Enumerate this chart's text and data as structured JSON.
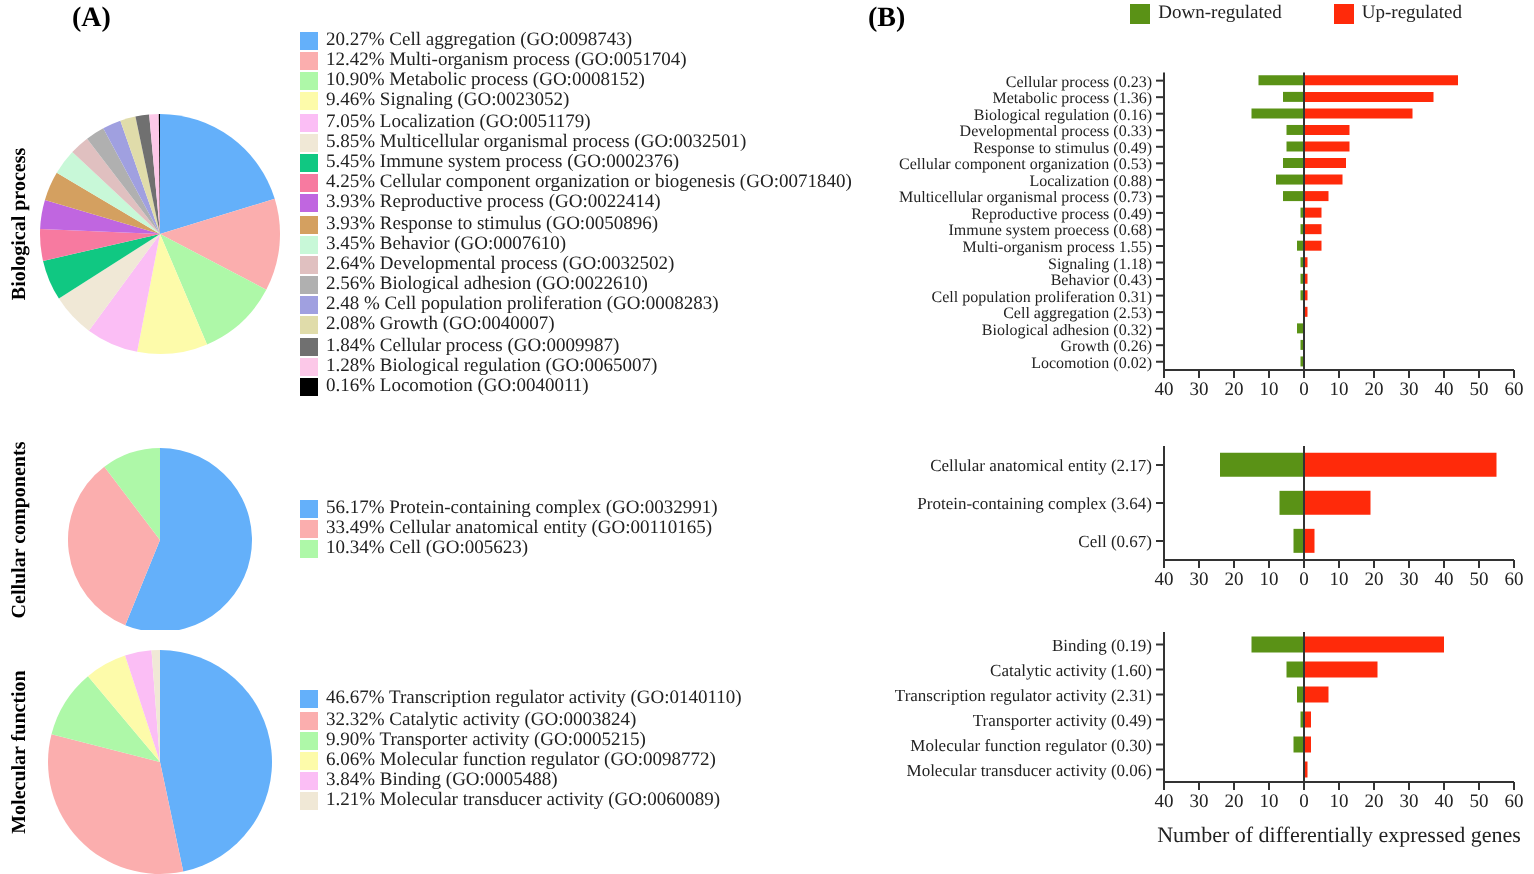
{
  "chart_data": [
    {
      "type": "pie",
      "title": "(A)",
      "ylabel": "Biological process",
      "legend": "right",
      "categories": [
        "Cell aggregation (GO:0098743)",
        "Multi-organism process (GO:0051704)",
        "Metabolic process (GO:0008152)",
        "Signaling (GO:0023052)",
        "Localization (GO:0051179)",
        "Multicellular organismal process (GO:0032501)",
        "Immune system process (GO:0002376)",
        "Cellular component organization or biogenesis (GO:0071840)",
        "Reproductive process (GO:0022414)",
        "Response to stimulus (GO:0050896)",
        "Behavior (GO:0007610)",
        "Developmental process (GO:0032502)",
        "Biological adhesion (GO:0022610)",
        "Cell population proliferation (GO:0008283)",
        "Growth (GO:0040007)",
        "Cellular process (GO:0009987)",
        "Biological regulation (GO:0065007)",
        "Locomotion (GO:0040011)"
      ],
      "values": [
        20.27,
        12.42,
        10.9,
        9.46,
        7.05,
        5.85,
        5.45,
        4.25,
        3.93,
        3.93,
        3.45,
        2.64,
        2.56,
        2.48,
        2.08,
        1.84,
        1.28,
        0.16
      ],
      "value_labels": [
        "20.27%",
        "12.42%",
        "10.90%",
        "9.46%",
        "7.05%",
        "5.85%",
        "5.45%",
        "4.25%",
        "3.93%",
        "3.93%",
        "3.45%",
        "2.64%",
        "2.56%",
        "2.48 %",
        "2.08%",
        "1.84%",
        "1.28%",
        "0.16%"
      ],
      "colors": [
        "#64b0fa",
        "#fbaeae",
        "#aef8a8",
        "#fdfbaa",
        "#fbbef5",
        "#f0e8d6",
        "#10c882",
        "#f77aa0",
        "#c066e0",
        "#d4a060",
        "#c8f8d8",
        "#e0c0c0",
        "#b0b0b0",
        "#a0a0e0",
        "#e0dcaa",
        "#707070",
        "#fcc8e8",
        "#000000"
      ]
    },
    {
      "type": "pie",
      "ylabel": "Cellular components",
      "legend": "right",
      "categories": [
        "Protein-containing complex (GO:0032991)",
        "Cellular anatomical entity (GO:00110165)",
        "Cell (GO:005623)"
      ],
      "values": [
        56.17,
        33.49,
        10.34
      ],
      "value_labels": [
        "56.17%",
        "33.49%",
        "10.34%"
      ],
      "colors": [
        "#64b0fa",
        "#fbaeae",
        "#aef8a8"
      ]
    },
    {
      "type": "pie",
      "ylabel": "Molecular function",
      "legend": "right",
      "categories": [
        "Transcription regulator activity (GO:0140110)",
        "Catalytic activity (GO:0003824)",
        "Transporter activity (GO:0005215)",
        "Molecular function regulator (GO:0098772)",
        "Binding (GO:0005488)",
        "Molecular transducer activity (GO:0060089)"
      ],
      "values": [
        46.67,
        32.32,
        9.9,
        6.06,
        3.84,
        1.21
      ],
      "value_labels": [
        "46.67%",
        "32.32%",
        "9.90%",
        "6.06%",
        "3.84%",
        "1.21%"
      ],
      "colors": [
        "#64b0fa",
        "#fbaeae",
        "#aef8a8",
        "#fdfbaa",
        "#fbbef5",
        "#f0e8d6"
      ]
    },
    {
      "type": "bar",
      "title": "(B)",
      "orientation": "horizontal",
      "stacked": true,
      "legend": "top",
      "categories": [
        "Cellular process (0.23)",
        "Metabolic process (1.36)",
        "Biological regulation (0.16)",
        "Developmental process (0.33)",
        "Response to stimulus (0.49)",
        "Cellular component organization (0.53)",
        "Localization (0.88)",
        "Multicellular organismal process (0.73)",
        "Reproductive process (0.49)",
        "Immune system proecess (0.68)",
        "Multi-organism process 1.55)",
        "Signaling (1.18)",
        "Behavior (0.43)",
        "Cell population proliferation 0.31)",
        "Cell aggregation (2.53)",
        "Biological adhesion (0.32)",
        "Growth (0.26)",
        "Locomotion (0.02)"
      ],
      "series": [
        {
          "name": "Down-regulated",
          "color": "#5a9216",
          "values": [
            -13,
            -6,
            -15,
            -5,
            -5,
            -6,
            -8,
            -6,
            -1,
            -1,
            -2,
            -1,
            -1,
            -1,
            0,
            -2,
            -1,
            -1
          ]
        },
        {
          "name": "Up-regulated",
          "color": "#ff2a0a",
          "values": [
            44,
            37,
            31,
            13,
            13,
            12,
            11,
            7,
            5,
            5,
            5,
            1,
            1,
            1,
            1,
            0,
            0,
            0
          ]
        }
      ],
      "xlim": [
        -40,
        60
      ],
      "xticks": [
        {
          "value": -40,
          "label": "40"
        },
        {
          "value": -30,
          "label": "30"
        },
        {
          "value": -20,
          "label": "20"
        },
        {
          "value": -10,
          "label": "10"
        },
        0,
        10,
        20,
        30,
        40,
        50,
        60
      ],
      "ref_lines": [
        {
          "axis": "x",
          "value": 0,
          "color": "#333333"
        }
      ]
    },
    {
      "type": "bar",
      "orientation": "horizontal",
      "stacked": true,
      "categories": [
        "Cellular anatomical entity (2.17)",
        "Protein-containing complex (3.64)",
        "Cell (0.67)"
      ],
      "series": [
        {
          "color": "#5a9216",
          "values": [
            -24,
            -7,
            -3
          ]
        },
        {
          "color": "#ff2a0a",
          "values": [
            55,
            19,
            3
          ]
        }
      ],
      "xlim": [
        -40,
        60
      ],
      "xticks": [
        {
          "value": -40,
          "label": "40"
        },
        {
          "value": -30,
          "label": "30"
        },
        {
          "value": -20,
          "label": "20"
        },
        {
          "value": -10,
          "label": "10"
        },
        0,
        10,
        20,
        30,
        40,
        50,
        60
      ],
      "ref_lines": [
        {
          "axis": "x",
          "value": 0,
          "color": "#333333"
        }
      ]
    },
    {
      "type": "bar",
      "orientation": "horizontal",
      "stacked": true,
      "xlabel": "Number of differentially expressed genes",
      "categories": [
        "Binding (0.19)",
        "Catalytic activity (1.60)",
        "Transcription regulator activity (2.31)",
        "Transporter activity (0.49)",
        "Molecular function regulator (0.30)",
        "Molecular transducer activity (0.06)"
      ],
      "series": [
        {
          "color": "#5a9216",
          "values": [
            -15,
            -5,
            -2,
            -1,
            -3,
            0
          ]
        },
        {
          "color": "#ff2a0a",
          "values": [
            40,
            21,
            7,
            2,
            2,
            1
          ]
        }
      ],
      "xlim": [
        -40,
        60
      ],
      "xticks": [
        {
          "value": -40,
          "label": "40"
        },
        {
          "value": -30,
          "label": "30"
        },
        {
          "value": -20,
          "label": "20"
        },
        {
          "value": -10,
          "label": "10"
        },
        0,
        10,
        20,
        30,
        40,
        50,
        60
      ],
      "ref_lines": [
        {
          "axis": "x",
          "value": 0,
          "color": "#333333"
        }
      ]
    }
  ]
}
